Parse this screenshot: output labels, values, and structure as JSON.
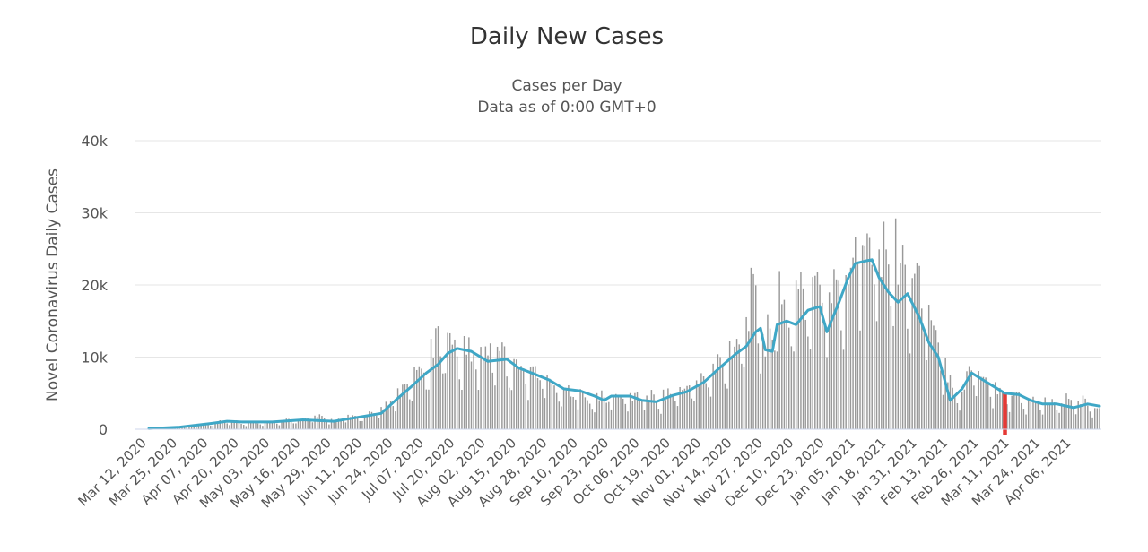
{
  "chart_data": {
    "type": "bar",
    "title": "Daily New Cases",
    "subtitle_lines": [
      "Cases per Day",
      "Data as of 0:00 GMT+0"
    ],
    "ylabel": "Novel Coronavirus Daily Cases",
    "xlabel": "",
    "ylim": [
      0,
      40000
    ],
    "yticks": [
      0,
      10000,
      20000,
      30000,
      40000
    ],
    "ytick_labels": [
      "0",
      "10k",
      "20k",
      "30k",
      "40k"
    ],
    "x_tick_labels": [
      "Mar 12, 2020",
      "Mar 25, 2020",
      "Apr 07, 2020",
      "Apr 20, 2020",
      "May 03, 2020",
      "May 16, 2020",
      "May 29, 2020",
      "Jun 11, 2020",
      "Jun 24, 2020",
      "Jul 07, 2020",
      "Jul 20, 2020",
      "Aug 02, 2020",
      "Aug 15, 2020",
      "Aug 28, 2020",
      "Sep 10, 2020",
      "Sep 23, 2020",
      "Oct 06, 2020",
      "Oct 19, 2020",
      "Nov 01, 2020",
      "Nov 14, 2020",
      "Nov 27, 2020",
      "Dec 10, 2020",
      "Dec 23, 2020",
      "Jan 05, 2021",
      "Jan 18, 2021",
      "Jan 31, 2021",
      "Feb 13, 2021",
      "Feb 26, 2021",
      "Mar 11, 2021",
      "Mar 24, 2021",
      "Apr 06, 2021"
    ],
    "first_date": "2020-03-12",
    "last_date": "2021-04-17",
    "grid": true,
    "legend": "none",
    "colors": {
      "bars": "#999999",
      "moving_average": "#3fa7c6",
      "highlight": "#e53935",
      "grid": "#e6e6e6",
      "axis": "#ccd6eb"
    },
    "highlight": {
      "date": "2021-03-08",
      "value": 5000
    },
    "series": [
      {
        "type": "bar",
        "points": [
          [
            "2020-03-12",
            100
          ],
          [
            "2020-03-25",
            250
          ],
          [
            "2020-04-07",
            700
          ],
          [
            "2020-04-14",
            1200
          ],
          [
            "2020-04-20",
            900
          ],
          [
            "2020-05-03",
            1000
          ],
          [
            "2020-05-10",
            1300
          ],
          [
            "2020-05-16",
            1400
          ],
          [
            "2020-05-22",
            1800
          ],
          [
            "2020-05-29",
            1200
          ],
          [
            "2020-06-04",
            1700
          ],
          [
            "2020-06-11",
            1900
          ],
          [
            "2020-06-18",
            2600
          ],
          [
            "2020-06-24",
            4500
          ],
          [
            "2020-06-30",
            6500
          ],
          [
            "2020-07-07",
            9000
          ],
          [
            "2020-07-12",
            12500
          ],
          [
            "2020-07-16",
            13500
          ],
          [
            "2020-07-20",
            11000
          ],
          [
            "2020-07-26",
            10500
          ],
          [
            "2020-08-02",
            11500
          ],
          [
            "2020-08-06",
            12500
          ],
          [
            "2020-08-10",
            9500
          ],
          [
            "2020-08-15",
            9000
          ],
          [
            "2020-08-22",
            8000
          ],
          [
            "2020-08-28",
            7000
          ],
          [
            "2020-09-03",
            5500
          ],
          [
            "2020-09-10",
            5000
          ],
          [
            "2020-09-16",
            4200
          ],
          [
            "2020-09-23",
            4800
          ],
          [
            "2020-09-30",
            4500
          ],
          [
            "2020-10-06",
            5000
          ],
          [
            "2020-10-12",
            4300
          ],
          [
            "2020-10-19",
            5200
          ],
          [
            "2020-10-25",
            6000
          ],
          [
            "2020-11-01",
            7000
          ],
          [
            "2020-11-07",
            9000
          ],
          [
            "2020-11-14",
            12000
          ],
          [
            "2020-11-19",
            15500
          ],
          [
            "2020-11-23",
            20000
          ],
          [
            "2020-11-27",
            11000
          ],
          [
            "2020-12-02",
            19500
          ],
          [
            "2020-12-06",
            14500
          ],
          [
            "2020-12-10",
            21000
          ],
          [
            "2020-12-15",
            18000
          ],
          [
            "2020-12-20",
            21500
          ],
          [
            "2020-12-23",
            18000
          ],
          [
            "2020-12-28",
            23000
          ],
          [
            "2021-01-01",
            20000
          ],
          [
            "2021-01-04",
            31500
          ],
          [
            "2021-01-08",
            24000
          ],
          [
            "2021-01-11",
            27000
          ],
          [
            "2021-01-14",
            25500
          ],
          [
            "2021-01-18",
            26000
          ],
          [
            "2021-01-22",
            24000
          ],
          [
            "2021-01-26",
            22000
          ],
          [
            "2021-01-31",
            21500
          ],
          [
            "2021-02-04",
            15000
          ],
          [
            "2021-02-08",
            12000
          ],
          [
            "2021-02-13",
            7000
          ],
          [
            "2021-02-18",
            4500
          ],
          [
            "2021-02-22",
            10000
          ],
          [
            "2021-02-26",
            7500
          ],
          [
            "2021-03-03",
            6000
          ],
          [
            "2021-03-08",
            5000
          ],
          [
            "2021-03-14",
            4700
          ],
          [
            "2021-03-19",
            4000
          ],
          [
            "2021-03-24",
            3800
          ],
          [
            "2021-03-30",
            3600
          ],
          [
            "2021-04-06",
            4200
          ],
          [
            "2021-04-12",
            3800
          ],
          [
            "2021-04-17",
            2500
          ]
        ]
      },
      {
        "type": "line",
        "points": [
          [
            "2020-03-12",
            100
          ],
          [
            "2020-03-25",
            300
          ],
          [
            "2020-04-07",
            800
          ],
          [
            "2020-04-14",
            1100
          ],
          [
            "2020-04-20",
            1000
          ],
          [
            "2020-05-03",
            1000
          ],
          [
            "2020-05-16",
            1300
          ],
          [
            "2020-05-29",
            1100
          ],
          [
            "2020-06-11",
            1800
          ],
          [
            "2020-06-18",
            2200
          ],
          [
            "2020-06-24",
            4000
          ],
          [
            "2020-07-01",
            6000
          ],
          [
            "2020-07-07",
            7800
          ],
          [
            "2020-07-12",
            9000
          ],
          [
            "2020-07-16",
            10500
          ],
          [
            "2020-07-20",
            11200
          ],
          [
            "2020-07-26",
            10800
          ],
          [
            "2020-08-02",
            9400
          ],
          [
            "2020-08-10",
            9700
          ],
          [
            "2020-08-15",
            8500
          ],
          [
            "2020-08-22",
            7600
          ],
          [
            "2020-08-28",
            6800
          ],
          [
            "2020-09-03",
            5600
          ],
          [
            "2020-09-10",
            5300
          ],
          [
            "2020-09-16",
            4600
          ],
          [
            "2020-09-20",
            4000
          ],
          [
            "2020-09-23",
            4600
          ],
          [
            "2020-10-01",
            4600
          ],
          [
            "2020-10-06",
            4000
          ],
          [
            "2020-10-12",
            3800
          ],
          [
            "2020-10-19",
            4700
          ],
          [
            "2020-10-25",
            5200
          ],
          [
            "2020-11-01",
            6500
          ],
          [
            "2020-11-07",
            8300
          ],
          [
            "2020-11-14",
            10300
          ],
          [
            "2020-11-19",
            11500
          ],
          [
            "2020-11-23",
            13500
          ],
          [
            "2020-11-25",
            14000
          ],
          [
            "2020-11-27",
            11000
          ],
          [
            "2020-11-30",
            10800
          ],
          [
            "2020-12-02",
            14500
          ],
          [
            "2020-12-06",
            15000
          ],
          [
            "2020-12-10",
            14500
          ],
          [
            "2020-12-15",
            16500
          ],
          [
            "2020-12-20",
            17000
          ],
          [
            "2020-12-23",
            13500
          ],
          [
            "2020-12-28",
            17500
          ],
          [
            "2021-01-01",
            21000
          ],
          [
            "2021-01-04",
            23000
          ],
          [
            "2021-01-08",
            23300
          ],
          [
            "2021-01-11",
            23500
          ],
          [
            "2021-01-14",
            21000
          ],
          [
            "2021-01-18",
            19000
          ],
          [
            "2021-01-22",
            17600
          ],
          [
            "2021-01-26",
            18800
          ],
          [
            "2021-01-31",
            15500
          ],
          [
            "2021-02-04",
            12000
          ],
          [
            "2021-02-08",
            10000
          ],
          [
            "2021-02-13",
            4000
          ],
          [
            "2021-02-18",
            5600
          ],
          [
            "2021-02-22",
            7800
          ],
          [
            "2021-02-26",
            7000
          ],
          [
            "2021-03-03",
            6000
          ],
          [
            "2021-03-08",
            5000
          ],
          [
            "2021-03-14",
            4800
          ],
          [
            "2021-03-19",
            4000
          ],
          [
            "2021-03-24",
            3500
          ],
          [
            "2021-03-30",
            3500
          ],
          [
            "2021-04-06",
            3000
          ],
          [
            "2021-04-12",
            3500
          ],
          [
            "2021-04-17",
            3200
          ]
        ]
      }
    ]
  }
}
